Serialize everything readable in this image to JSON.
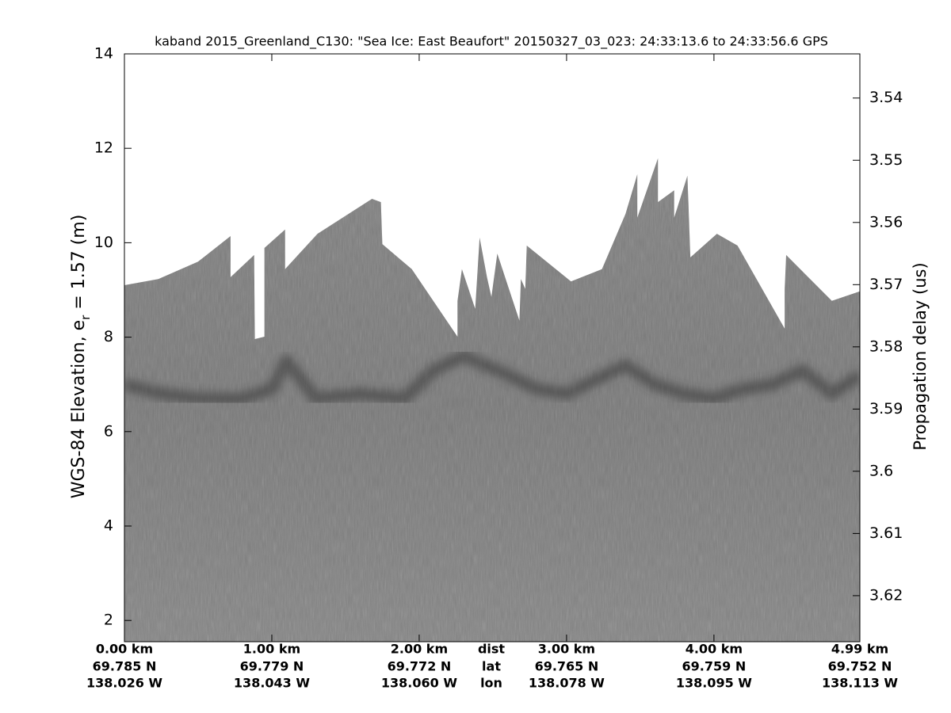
{
  "chart_data": {
    "type": "echogram",
    "title": "kaband 2015_Greenland_C130: \"Sea Ice: East Beaufort\"  20150327_03_023: 24:33:13.6 to 24:33:56.6 GPS",
    "ylabel": {
      "text": "WGS-84 Elevation, e",
      "sub": "r",
      "tail": " = 1.57 (m)"
    },
    "y2label": "Propagation delay (us)",
    "xlim": [
      0,
      4.99
    ],
    "xticks": [
      {
        "value": 0,
        "label": "0.00 km"
      },
      {
        "value": 1,
        "label": "1.00 km"
      },
      {
        "value": 2,
        "label": "2.00 km"
      },
      {
        "value": 3,
        "label": "3.00 km"
      },
      {
        "value": 4,
        "label": "4.00 km"
      },
      {
        "value": 4.99,
        "label": "4.99 km"
      }
    ],
    "xtick_lat": [
      "69.785 N",
      "69.779 N",
      "69.772 N",
      "69.765 N",
      "69.759 N",
      "69.752 N"
    ],
    "xtick_lon": [
      "138.026 W",
      "138.043 W",
      "138.060 W",
      "138.078 W",
      "138.095 W",
      "138.113 W"
    ],
    "xtick_row_names": [
      "dist",
      "lat",
      "lon"
    ],
    "ylim": [
      1.55,
      14
    ],
    "yticks": [
      2,
      4,
      6,
      8,
      10,
      12,
      14
    ],
    "y2lim": [
      3.6274,
      3.5329
    ],
    "y2ticks": [
      3.54,
      3.55,
      3.56,
      3.57,
      3.58,
      3.59,
      3.6,
      3.61,
      3.62
    ],
    "surface": {
      "color": "#848484",
      "x": [
        0,
        0.23,
        0.5,
        0.72,
        0.72,
        0.88,
        0.885,
        0.95,
        0.95,
        1.09,
        1.09,
        1.31,
        1.68,
        1.74,
        1.75,
        1.95,
        2.26,
        2.26,
        2.29,
        2.38,
        2.41,
        2.46,
        2.49,
        2.53,
        2.68,
        2.69,
        2.72,
        2.73,
        3.03,
        3.24,
        3.4,
        3.48,
        3.48,
        3.62,
        3.62,
        3.73,
        3.73,
        3.82,
        3.84,
        4.02,
        4.16,
        4.48,
        4.48,
        4.49,
        4.8,
        4.99
      ],
      "values": [
        9.1,
        9.23,
        9.6,
        10.14,
        9.27,
        9.74,
        7.96,
        8.01,
        9.89,
        10.28,
        9.44,
        10.19,
        10.93,
        10.86,
        9.97,
        9.44,
        8.01,
        8.77,
        9.44,
        8.6,
        10.11,
        9.27,
        8.85,
        9.77,
        8.35,
        9.23,
        9.02,
        9.94,
        9.18,
        9.44,
        10.61,
        11.45,
        10.53,
        11.79,
        10.86,
        11.11,
        10.53,
        11.42,
        9.69,
        10.19,
        9.94,
        8.18,
        9.02,
        9.74,
        8.77,
        8.97
      ]
    },
    "reflector": {
      "color": "#2a2a2a",
      "x": [
        0,
        0.25,
        0.5,
        0.8,
        1.0,
        1.1,
        1.3,
        1.6,
        1.9,
        2.1,
        2.3,
        2.6,
        2.8,
        3.0,
        3.2,
        3.4,
        3.6,
        3.8,
        4.0,
        4.2,
        4.4,
        4.6,
        4.8,
        4.99
      ],
      "values": [
        7.0,
        6.8,
        6.7,
        6.7,
        6.9,
        7.5,
        6.7,
        6.8,
        6.7,
        7.3,
        7.6,
        7.2,
        6.9,
        6.8,
        7.1,
        7.4,
        7.0,
        6.8,
        6.7,
        6.9,
        7.0,
        7.3,
        6.8,
        7.2
      ]
    }
  }
}
